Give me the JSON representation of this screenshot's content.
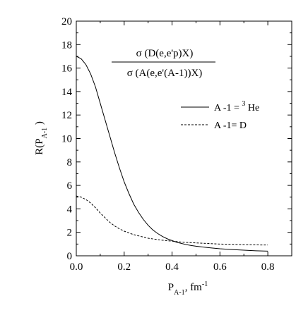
{
  "chart_data": {
    "type": "line",
    "xlim": [
      0.0,
      0.9
    ],
    "ylim": [
      0,
      20
    ],
    "x_ticks": [
      "0.0",
      "0.2",
      "0.4",
      "0.6",
      "0.8"
    ],
    "y_ticks": [
      "0",
      "2",
      "4",
      "6",
      "8",
      "10",
      "12",
      "14",
      "16",
      "18",
      "20"
    ],
    "xlabel": {
      "main": "P",
      "sub": "A-1",
      "tail": ", fm",
      "sup": "-1"
    },
    "ylabel": {
      "main": "R(P",
      "sub": "A-1",
      "tail": " )"
    },
    "formula": {
      "numerator": "σ (D(e,e'p)X)",
      "denominator": "σ (A(e,e'(A-1))X)"
    },
    "grid": false,
    "legend_position": "right, middle",
    "series": [
      {
        "name_prefix": "A -1 = ",
        "name_sup": "3",
        "name_suffix": " He",
        "style": "solid",
        "color": "#000000",
        "x": [
          0.0,
          0.02,
          0.04,
          0.06,
          0.08,
          0.1,
          0.12,
          0.14,
          0.16,
          0.18,
          0.2,
          0.22,
          0.24,
          0.26,
          0.28,
          0.3,
          0.32,
          0.34,
          0.36,
          0.38,
          0.4,
          0.42,
          0.44,
          0.46,
          0.48,
          0.5,
          0.55,
          0.6,
          0.65,
          0.7,
          0.75,
          0.8
        ],
        "y": [
          17.0,
          16.8,
          16.3,
          15.5,
          14.4,
          13.0,
          11.6,
          10.2,
          8.8,
          7.5,
          6.3,
          5.3,
          4.4,
          3.7,
          3.1,
          2.6,
          2.2,
          1.9,
          1.65,
          1.45,
          1.3,
          1.15,
          1.05,
          0.95,
          0.88,
          0.82,
          0.7,
          0.6,
          0.53,
          0.48,
          0.43,
          0.4
        ]
      },
      {
        "name": "A -1= D",
        "style": "dashed",
        "color": "#000000",
        "x": [
          0.0,
          0.02,
          0.04,
          0.06,
          0.08,
          0.1,
          0.12,
          0.14,
          0.16,
          0.18,
          0.2,
          0.22,
          0.24,
          0.26,
          0.28,
          0.3,
          0.35,
          0.4,
          0.45,
          0.5,
          0.55,
          0.6,
          0.65,
          0.7,
          0.75,
          0.8
        ],
        "y": [
          5.1,
          5.0,
          4.8,
          4.5,
          4.1,
          3.65,
          3.25,
          2.85,
          2.55,
          2.3,
          2.1,
          1.95,
          1.8,
          1.7,
          1.6,
          1.5,
          1.35,
          1.25,
          1.15,
          1.1,
          1.05,
          1.0,
          0.98,
          0.95,
          0.93,
          0.92
        ]
      }
    ]
  }
}
